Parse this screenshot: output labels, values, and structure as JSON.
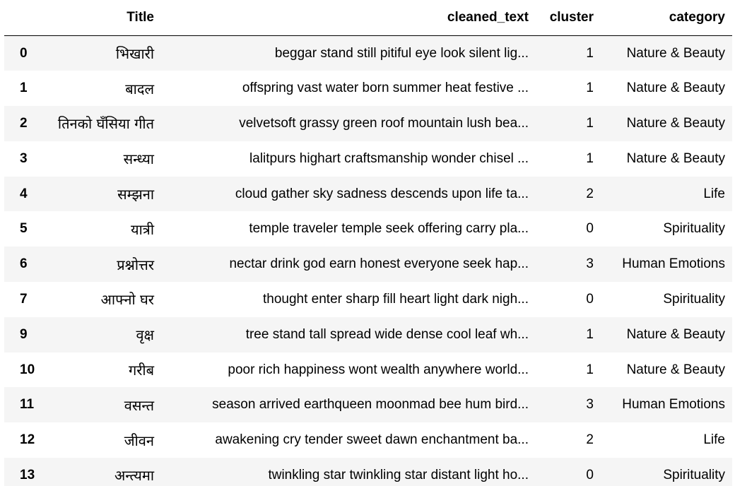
{
  "table": {
    "columns": [
      "",
      "Title",
      "cleaned_text",
      "cluster",
      "category"
    ],
    "rows": [
      {
        "index": "0",
        "title": "भिखारी",
        "cleaned_text": "beggar stand still pitiful eye look silent lig...",
        "cluster": "1",
        "category": "Nature & Beauty"
      },
      {
        "index": "1",
        "title": "बादल",
        "cleaned_text": "offspring vast water born summer heat festive ...",
        "cluster": "1",
        "category": "Nature & Beauty"
      },
      {
        "index": "2",
        "title": "तिनको घँसिया गीत",
        "cleaned_text": "velvetsoft grassy green roof mountain lush bea...",
        "cluster": "1",
        "category": "Nature & Beauty"
      },
      {
        "index": "3",
        "title": "सन्ध्या",
        "cleaned_text": "lalitpurs highart craftsmanship wonder chisel ...",
        "cluster": "1",
        "category": "Nature & Beauty"
      },
      {
        "index": "4",
        "title": "सम्झना",
        "cleaned_text": "cloud gather sky sadness descends upon life ta...",
        "cluster": "2",
        "category": "Life"
      },
      {
        "index": "5",
        "title": "यात्री",
        "cleaned_text": "temple traveler temple seek offering carry pla...",
        "cluster": "0",
        "category": "Spirituality"
      },
      {
        "index": "6",
        "title": "प्रश्नोत्तर",
        "cleaned_text": "nectar drink god earn honest everyone seek hap...",
        "cluster": "3",
        "category": "Human Emotions"
      },
      {
        "index": "7",
        "title": "आफ्नो घर",
        "cleaned_text": "thought enter sharp fill heart light dark nigh...",
        "cluster": "0",
        "category": "Spirituality"
      },
      {
        "index": "9",
        "title": "वृक्ष",
        "cleaned_text": "tree stand tall spread wide dense cool leaf wh...",
        "cluster": "1",
        "category": "Nature & Beauty"
      },
      {
        "index": "10",
        "title": "गरीब",
        "cleaned_text": "poor rich happiness wont wealth anywhere world...",
        "cluster": "1",
        "category": "Nature & Beauty"
      },
      {
        "index": "11",
        "title": "वसन्त",
        "cleaned_text": "season arrived earthqueen moonmad bee hum bird...",
        "cluster": "3",
        "category": "Human Emotions"
      },
      {
        "index": "12",
        "title": "जीवन",
        "cleaned_text": "awakening cry tender sweet dawn enchantment ba...",
        "cluster": "2",
        "category": "Life"
      },
      {
        "index": "13",
        "title": "अन्त्यमा",
        "cleaned_text": "twinkling star twinkling star distant light ho...",
        "cluster": "0",
        "category": "Spirituality"
      }
    ]
  },
  "colors": {
    "stripe_row": "#f5f5f5",
    "plain_row": "#ffffff",
    "header_rule": "#000000",
    "text": "#000000"
  }
}
